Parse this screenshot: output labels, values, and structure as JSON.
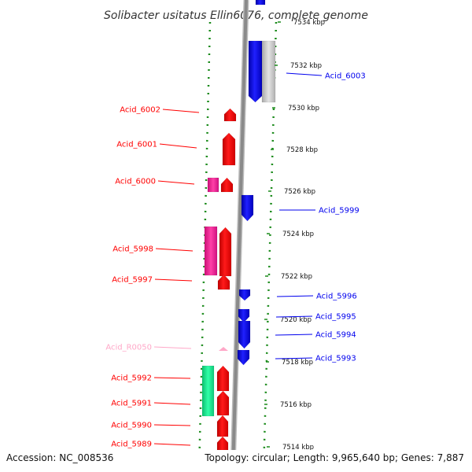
{
  "title": "Solibacter usitatus Ellin6076, complete genome",
  "footer": {
    "accession": "Accession: NC_008536",
    "summary": "Topology: circular; Length: 9,965,640 bp; Genes: 7,887"
  },
  "colors": {
    "forward_cds": "#ff0000",
    "reverse_cds": "#0000ee",
    "forward_rna": "#ff3fa0",
    "forward_other": "#10e890",
    "reverse_other": "#c8c8c8",
    "trna": "#ffa8c8",
    "backbone": "#999999",
    "tick": "#1a8a1a"
  },
  "scale_labels": [
    "7534 kbp",
    "7532 kbp",
    "7530 kbp",
    "7528 kbp",
    "7526 kbp",
    "7524 kbp",
    "7522 kbp",
    "7520 kbp",
    "7518 kbp",
    "7516 kbp",
    "7514 kbp"
  ],
  "gene_labels": {
    "left": [
      "Acid_6002",
      "Acid_6001",
      "Acid_6000",
      "Acid_5998",
      "Acid_5997",
      "Acid_R0050",
      "Acid_5992",
      "Acid_5991",
      "Acid_5990",
      "Acid_5989"
    ],
    "right": [
      "Acid_6003",
      "Acid_5999",
      "Acid_5996",
      "Acid_5995",
      "Acid_5994",
      "Acid_5993"
    ]
  },
  "features": {
    "reverse_cds": [
      "Acid_6003",
      "Acid_5999",
      "Acid_5996",
      "Acid_5995",
      "Acid_5994",
      "Acid_5993"
    ],
    "forward_cds": [
      "Acid_6002",
      "Acid_6001",
      "Acid_6000",
      "Acid_5998",
      "Acid_5997",
      "Acid_5992",
      "Acid_5991",
      "Acid_5990",
      "Acid_5989"
    ],
    "trna": [
      "Acid_R0050"
    ]
  }
}
